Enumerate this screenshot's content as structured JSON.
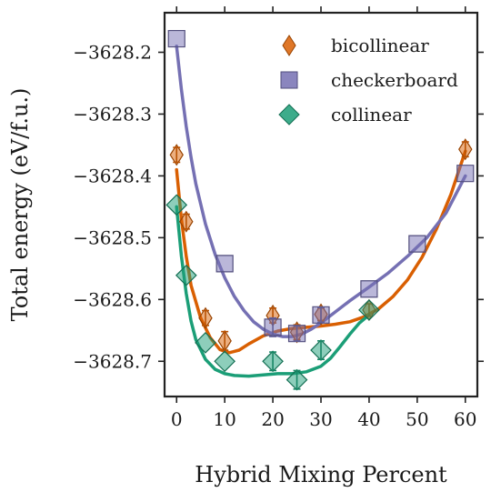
{
  "chart_data": {
    "type": "scatter",
    "title": "",
    "xlabel": "Hybrid Mixing Percent",
    "ylabel": "Total energy (eV/f.u.)",
    "xlim": [
      -2.5,
      62.5
    ],
    "ylim": [
      -3628.757,
      -3628.136
    ],
    "xticks": [
      0,
      10,
      20,
      30,
      40,
      50,
      60
    ],
    "yticks": [
      -3628.2,
      -3628.3,
      -3628.4,
      -3628.5,
      -3628.6,
      -3628.7
    ],
    "xtick_labels": [
      "0",
      "10",
      "20",
      "30",
      "40",
      "50",
      "60"
    ],
    "ytick_labels": [
      "−3628.2",
      "−3628.3",
      "−3628.4",
      "−3628.5",
      "−3628.6",
      "−3628.7"
    ],
    "grid": false,
    "legend_position": "top-right",
    "series": [
      {
        "name": "bicollinear",
        "marker": "thin-diamond",
        "color": "#d95f02",
        "points": [
          {
            "x": 0,
            "y": -3628.366,
            "err": 0.012
          },
          {
            "x": 2,
            "y": -3628.474,
            "err": 0.012
          },
          {
            "x": 6,
            "y": -3628.63,
            "err": 0.012
          },
          {
            "x": 10,
            "y": -3628.667,
            "err": 0.015
          },
          {
            "x": 20,
            "y": -3628.626,
            "err": 0.012
          },
          {
            "x": 25,
            "y": -3628.653,
            "err": 0.012
          },
          {
            "x": 30,
            "y": -3628.624,
            "err": 0.01
          },
          {
            "x": 40,
            "y": -3628.617,
            "err": 0.01
          },
          {
            "x": 60,
            "y": -3628.357,
            "err": 0.012
          }
        ],
        "fit": [
          [
            0,
            -3628.39
          ],
          [
            1,
            -3628.47
          ],
          [
            2,
            -3628.53
          ],
          [
            3,
            -3628.577
          ],
          [
            5,
            -3628.63
          ],
          [
            7,
            -3628.662
          ],
          [
            9,
            -3628.681
          ],
          [
            11,
            -3628.686
          ],
          [
            13,
            -3628.682
          ],
          [
            15,
            -3628.672
          ],
          [
            18,
            -3628.659
          ],
          [
            21,
            -3628.651
          ],
          [
            24,
            -3628.647
          ],
          [
            27,
            -3628.645
          ],
          [
            30,
            -3628.643
          ],
          [
            33,
            -3628.64
          ],
          [
            36,
            -3628.636
          ],
          [
            39,
            -3628.628
          ],
          [
            42,
            -3628.615
          ],
          [
            45,
            -3628.595
          ],
          [
            48,
            -3628.568
          ],
          [
            51,
            -3628.532
          ],
          [
            54,
            -3628.486
          ],
          [
            57,
            -3628.43
          ],
          [
            60,
            -3628.36
          ]
        ]
      },
      {
        "name": "checkerboard",
        "marker": "square",
        "color": "#7570b3",
        "points": [
          {
            "x": 0,
            "y": -3628.178,
            "err": 0
          },
          {
            "x": 10,
            "y": -3628.542,
            "err": 0
          },
          {
            "x": 20,
            "y": -3628.645,
            "err": 0.015
          },
          {
            "x": 25,
            "y": -3628.655,
            "err": 0.012
          },
          {
            "x": 30,
            "y": -3628.625,
            "err": 0.012
          },
          {
            "x": 40,
            "y": -3628.583,
            "err": 0
          },
          {
            "x": 50,
            "y": -3628.51,
            "err": 0
          },
          {
            "x": 60,
            "y": -3628.396,
            "err": 0
          }
        ],
        "fit": [
          [
            0,
            -3628.19
          ],
          [
            1,
            -3628.26
          ],
          [
            2,
            -3628.32
          ],
          [
            3,
            -3628.37
          ],
          [
            4,
            -3628.413
          ],
          [
            6,
            -3628.478
          ],
          [
            8,
            -3628.527
          ],
          [
            10,
            -3628.565
          ],
          [
            12,
            -3628.595
          ],
          [
            14,
            -3628.618
          ],
          [
            16,
            -3628.636
          ],
          [
            18,
            -3628.648
          ],
          [
            20,
            -3628.656
          ],
          [
            22,
            -3628.66
          ],
          [
            24,
            -3628.66
          ],
          [
            26,
            -3628.656
          ],
          [
            28,
            -3628.648
          ],
          [
            30,
            -3628.638
          ],
          [
            33,
            -3628.62
          ],
          [
            36,
            -3628.602
          ],
          [
            40,
            -3628.58
          ],
          [
            44,
            -3628.557
          ],
          [
            48,
            -3628.53
          ],
          [
            52,
            -3628.5
          ],
          [
            56,
            -3628.46
          ],
          [
            60,
            -3628.4
          ]
        ]
      },
      {
        "name": "collinear",
        "marker": "diamond",
        "color": "#1b9e77",
        "points": [
          {
            "x": 0,
            "y": -3628.447,
            "err": 0
          },
          {
            "x": 2,
            "y": -3628.561,
            "err": 0
          },
          {
            "x": 6,
            "y": -3628.67,
            "err": 0
          },
          {
            "x": 10,
            "y": -3628.7,
            "err": 0
          },
          {
            "x": 20,
            "y": -3628.7,
            "err": 0.015
          },
          {
            "x": 25,
            "y": -3628.73,
            "err": 0.015
          },
          {
            "x": 30,
            "y": -3628.682,
            "err": 0.015
          },
          {
            "x": 40,
            "y": -3628.617,
            "err": 0
          }
        ],
        "fit": [
          [
            0,
            -3628.45
          ],
          [
            1,
            -3628.53
          ],
          [
            2,
            -3628.59
          ],
          [
            3,
            -3628.635
          ],
          [
            4,
            -3628.665
          ],
          [
            6,
            -3628.697
          ],
          [
            8,
            -3628.713
          ],
          [
            10,
            -3628.72
          ],
          [
            12,
            -3628.723
          ],
          [
            15,
            -3628.724
          ],
          [
            18,
            -3628.722
          ],
          [
            21,
            -3628.72
          ],
          [
            24,
            -3628.72
          ],
          [
            27,
            -3628.717
          ],
          [
            30,
            -3628.708
          ],
          [
            32,
            -3628.695
          ],
          [
            34,
            -3628.676
          ],
          [
            36,
            -3628.656
          ],
          [
            38,
            -3628.638
          ],
          [
            40,
            -3628.625
          ]
        ]
      }
    ]
  }
}
